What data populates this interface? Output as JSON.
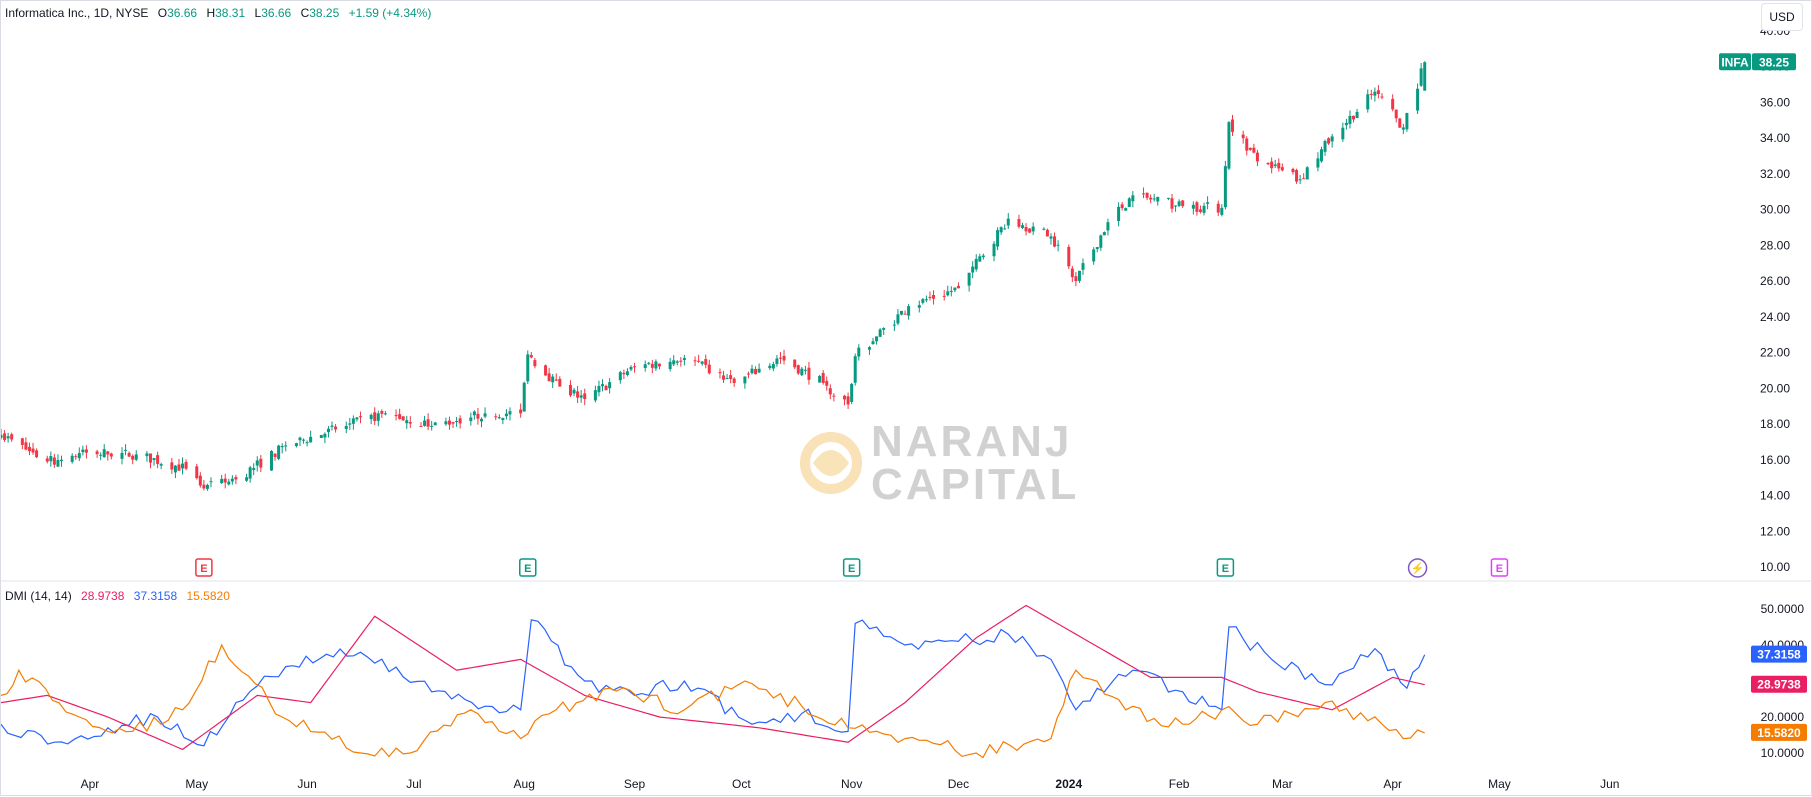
{
  "header": {
    "symbol_line": "Informatica Inc., 1D, NYSE",
    "open_label": "O",
    "open_value": "36.66",
    "high_label": "H",
    "high_value": "38.31",
    "low_label": "L",
    "low_value": "36.66",
    "close_label": "C",
    "close_value": "38.25",
    "change_value": "+1.59 (+4.34%)",
    "currency_button": "USD"
  },
  "indicator_legend": {
    "name": "DMI (14, 14)",
    "adx_value": "28.9738",
    "plus_di_value": "37.3158",
    "minus_di_value": "15.5820"
  },
  "price_tag": {
    "symbol": "INFA",
    "value": "38.25"
  },
  "dmi_tags": {
    "plus_di": "37.3158",
    "adx": "28.9738",
    "minus_di": "15.5820"
  },
  "watermark": {
    "line1": "NARANJ",
    "line2": "CAPITAL"
  },
  "colors": {
    "up": "#089981",
    "down": "#f23645",
    "plus_di": "#2962ff",
    "adx": "#e91e63",
    "minus_di": "#f57c00",
    "earnings_past": "#089981",
    "earnings_miss": "#f23645",
    "earnings_future": "#e040fb",
    "dividend": "#7e57c2"
  },
  "events": [
    {
      "date": "2023-05-03",
      "label": "E",
      "kind": "miss"
    },
    {
      "date": "2023-08-02",
      "label": "E",
      "kind": "beat"
    },
    {
      "date": "2023-11-01",
      "label": "E",
      "kind": "beat"
    },
    {
      "date": "2024-02-14",
      "label": "E",
      "kind": "beat"
    },
    {
      "date": "2024-04-08",
      "label": "⚡",
      "kind": "dividend"
    },
    {
      "date": "2024-05-01",
      "label": "E",
      "kind": "future"
    }
  ],
  "chart_data": [
    {
      "type": "candlestick",
      "title": "Informatica Inc., 1D, NYSE",
      "ylim": [
        10,
        40
      ],
      "y_ticks": [
        "40.00",
        "38.00",
        "36.00",
        "34.00",
        "32.00",
        "30.00",
        "28.00",
        "26.00",
        "24.00",
        "22.00",
        "20.00",
        "18.00",
        "16.00",
        "14.00",
        "12.00",
        "10.00"
      ],
      "x_ticks": [
        "Apr",
        "May",
        "Jun",
        "Jul",
        "Aug",
        "Sep",
        "Oct",
        "Nov",
        "Dec",
        "2024",
        "Feb",
        "Mar",
        "Apr",
        "May",
        "Jun"
      ],
      "x_tick_dates": [
        "2023-04-01",
        "2023-05-01",
        "2023-06-01",
        "2023-07-01",
        "2023-08-01",
        "2023-09-01",
        "2023-10-01",
        "2023-11-01",
        "2023-12-01",
        "2024-01-01",
        "2024-02-01",
        "2024-03-01",
        "2024-04-01",
        "2024-05-01",
        "2024-06-01"
      ],
      "x_range": [
        "2023-03-07",
        "2024-06-30"
      ],
      "close_anchors": [
        [
          "2023-03-07",
          17.4
        ],
        [
          "2023-03-20",
          15.9
        ],
        [
          "2023-03-31",
          16.4
        ],
        [
          "2023-04-14",
          16.3
        ],
        [
          "2023-04-28",
          15.5
        ],
        [
          "2023-05-03",
          14.4
        ],
        [
          "2023-05-12",
          14.9
        ],
        [
          "2023-05-26",
          16.8
        ],
        [
          "2023-06-09",
          17.7
        ],
        [
          "2023-06-23",
          18.6
        ],
        [
          "2023-07-06",
          17.9
        ],
        [
          "2023-07-21",
          18.6
        ],
        [
          "2023-07-31",
          18.6
        ],
        [
          "2023-08-02",
          21.9
        ],
        [
          "2023-08-11",
          20.1
        ],
        [
          "2023-08-18",
          19.4
        ],
        [
          "2023-09-01",
          21.2
        ],
        [
          "2023-09-15",
          21.7
        ],
        [
          "2023-09-29",
          20.3
        ],
        [
          "2023-10-12",
          21.7
        ],
        [
          "2023-10-24",
          20.3
        ],
        [
          "2023-10-31",
          19.1
        ],
        [
          "2023-11-02",
          21.8
        ],
        [
          "2023-11-17",
          24.6
        ],
        [
          "2023-12-01",
          25.6
        ],
        [
          "2023-12-15",
          29.5
        ],
        [
          "2023-12-27",
          28.5
        ],
        [
          "2024-01-03",
          26.0
        ],
        [
          "2024-01-12",
          29.3
        ],
        [
          "2024-01-19",
          30.8
        ],
        [
          "2024-02-02",
          30.2
        ],
        [
          "2024-02-13",
          30.1
        ],
        [
          "2024-02-15",
          34.9
        ],
        [
          "2024-02-23",
          32.7
        ],
        [
          "2024-03-06",
          31.7
        ],
        [
          "2024-03-15",
          34.1
        ],
        [
          "2024-03-27",
          36.6
        ],
        [
          "2024-04-04",
          34.6
        ],
        [
          "2024-04-10",
          38.25
        ]
      ],
      "last_bar": {
        "open": 36.66,
        "high": 38.31,
        "low": 36.66,
        "close": 38.25
      }
    },
    {
      "type": "line",
      "title": "DMI (14, 14)",
      "y_ticks": [
        "50.0000",
        "40.0000",
        "30.0000",
        "20.0000",
        "10.0000"
      ],
      "ylim": [
        5,
        55
      ],
      "series": [
        {
          "name": "+DI",
          "color": "#2962ff",
          "points": [
            [
              "2023-03-07",
              18
            ],
            [
              "2023-03-22",
              13
            ],
            [
              "2023-04-06",
              17
            ],
            [
              "2023-04-20",
              20
            ],
            [
              "2023-05-03",
              12
            ],
            [
              "2023-05-12",
              24
            ],
            [
              "2023-05-26",
              34
            ],
            [
              "2023-06-16",
              38
            ],
            [
              "2023-07-06",
              27
            ],
            [
              "2023-07-21",
              23
            ],
            [
              "2023-07-31",
              22
            ],
            [
              "2023-08-03",
              47
            ],
            [
              "2023-08-18",
              30
            ],
            [
              "2023-09-01",
              26
            ],
            [
              "2023-09-15",
              30
            ],
            [
              "2023-10-04",
              18
            ],
            [
              "2023-10-18",
              21
            ],
            [
              "2023-10-31",
              16
            ],
            [
              "2023-11-02",
              46
            ],
            [
              "2023-11-16",
              40
            ],
            [
              "2023-12-01",
              41
            ],
            [
              "2023-12-15",
              43
            ],
            [
              "2023-12-27",
              36
            ],
            [
              "2024-01-03",
              22
            ],
            [
              "2024-01-19",
              33
            ],
            [
              "2024-02-02",
              27
            ],
            [
              "2024-02-13",
              22
            ],
            [
              "2024-02-15",
              45
            ],
            [
              "2024-02-27",
              36
            ],
            [
              "2024-03-13",
              29
            ],
            [
              "2024-03-27",
              39
            ],
            [
              "2024-04-05",
              28
            ],
            [
              "2024-04-10",
              37.3158
            ]
          ]
        },
        {
          "name": "ADX",
          "color": "#e91e63",
          "points": [
            [
              "2023-03-07",
              24
            ],
            [
              "2023-03-20",
              26
            ],
            [
              "2023-04-06",
              20
            ],
            [
              "2023-04-27",
              11
            ],
            [
              "2023-05-18",
              26
            ],
            [
              "2023-06-02",
              24
            ],
            [
              "2023-06-20",
              48
            ],
            [
              "2023-07-13",
              33
            ],
            [
              "2023-07-31",
              36
            ],
            [
              "2023-08-18",
              26
            ],
            [
              "2023-09-08",
              20
            ],
            [
              "2023-10-06",
              17
            ],
            [
              "2023-10-31",
              13
            ],
            [
              "2023-11-16",
              24
            ],
            [
              "2023-12-06",
              42
            ],
            [
              "2023-12-20",
              51
            ],
            [
              "2024-01-03",
              43
            ],
            [
              "2024-01-24",
              31
            ],
            [
              "2024-02-13",
              31
            ],
            [
              "2024-02-23",
              27
            ],
            [
              "2024-03-15",
              22
            ],
            [
              "2024-04-01",
              31
            ],
            [
              "2024-04-10",
              28.9738
            ]
          ]
        },
        {
          "name": "-DI",
          "color": "#f57c00",
          "points": [
            [
              "2023-03-07",
              26
            ],
            [
              "2023-03-12",
              33
            ],
            [
              "2023-03-29",
              20
            ],
            [
              "2023-04-13",
              16
            ],
            [
              "2023-04-27",
              22
            ],
            [
              "2023-05-08",
              40
            ],
            [
              "2023-05-25",
              20
            ],
            [
              "2023-06-16",
              10
            ],
            [
              "2023-06-30",
              10
            ],
            [
              "2023-07-17",
              22
            ],
            [
              "2023-07-31",
              14
            ],
            [
              "2023-08-10",
              22
            ],
            [
              "2023-08-25",
              28
            ],
            [
              "2023-09-15",
              22
            ],
            [
              "2023-10-02",
              30
            ],
            [
              "2023-10-18",
              23
            ],
            [
              "2023-10-31",
              17
            ],
            [
              "2023-11-16",
              14
            ],
            [
              "2023-12-06",
              10
            ],
            [
              "2023-12-27",
              14
            ],
            [
              "2024-01-03",
              33
            ],
            [
              "2024-01-17",
              22
            ],
            [
              "2024-02-02",
              18
            ],
            [
              "2024-02-13",
              22
            ],
            [
              "2024-02-23",
              18
            ],
            [
              "2024-03-13",
              24
            ],
            [
              "2024-03-29",
              18
            ],
            [
              "2024-04-04",
              14
            ],
            [
              "2024-04-10",
              15.582
            ]
          ]
        }
      ]
    }
  ]
}
